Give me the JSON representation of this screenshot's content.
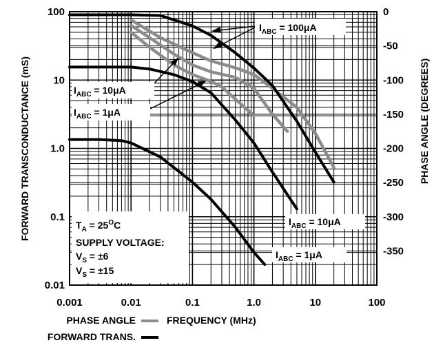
{
  "chart_data": {
    "type": "line",
    "x_scale": "log",
    "y_left_scale": "log",
    "y_right_scale": "linear",
    "xlim": [
      0.001,
      100
    ],
    "ylim_left": [
      0.01,
      100
    ],
    "ylim_right": [
      -400,
      0
    ],
    "grid": true,
    "legend_placement": "bottom-left",
    "xlabel": "FREQUENCY (MHz)",
    "ylabel_left": "FORWARD TRANSCONDUCTANCE (mS)",
    "ylabel_right": "PHASE ANGLE (DEGREES)",
    "x_tick_labels": [
      "0.001",
      "0.01",
      "0.1",
      "1.0",
      "10",
      "100"
    ],
    "y_left_tick_labels": [
      "0.01",
      "0.1",
      "1.0",
      "10",
      "100"
    ],
    "y_right_tick_labels": [
      "0",
      "-50",
      "-100",
      "-150",
      "-200",
      "-250",
      "-300",
      "-350"
    ],
    "legend": [
      {
        "label": "PHASE ANGLE",
        "color": "#8c8c8c"
      },
      {
        "label": "FORWARD TRANS.",
        "color": "#000000"
      }
    ],
    "annotations": {
      "iabc_100_top": {
        "main": "I",
        "sub": "ABC",
        "rest": " = 100μA"
      },
      "iabc_10_left": {
        "main": "I",
        "sub": "ABC",
        "rest": " = 10μA"
      },
      "iabc_1_left": {
        "main": "I",
        "sub": "ABC",
        "rest": " = 1μA"
      },
      "iabc_10_right": {
        "main": "I",
        "sub": "ABC",
        "rest": " = 10μA"
      },
      "iabc_1_right": {
        "main": "I",
        "sub": "ABC",
        "rest": " = 1μA"
      },
      "conditions": {
        "ta_main": "T",
        "ta_sub": "A",
        "ta_rest": " = 25",
        "ta_sup": "O",
        "ta_unit": "C",
        "supply": "SUPPLY VOLTAGE:",
        "vs1_main": "V",
        "vs1_sub": "S",
        "vs1_rest": " = ±6",
        "vs2_main": "V",
        "vs2_sub": "S",
        "vs2_rest": " = ±15"
      }
    },
    "series": [
      {
        "kind": "forward_trans",
        "axis": "left",
        "color": "#000000",
        "iabc": "100μA",
        "x": [
          0.001,
          0.01,
          0.03,
          0.1,
          0.2,
          0.5,
          1,
          2,
          5,
          10,
          20
        ],
        "y": [
          90,
          90,
          88,
          62,
          45,
          25,
          15,
          8.3,
          2.5,
          0.88,
          0.32
        ]
      },
      {
        "kind": "forward_trans",
        "axis": "left",
        "color": "#000000",
        "iabc": "10μA",
        "x": [
          0.001,
          0.01,
          0.02,
          0.05,
          0.1,
          0.2,
          0.5,
          1,
          2,
          5
        ],
        "y": [
          15.5,
          15.5,
          14.5,
          12,
          9.5,
          6.5,
          2.6,
          1.2,
          0.45,
          0.13
        ]
      },
      {
        "kind": "forward_trans",
        "axis": "left",
        "color": "#000000",
        "iabc": "1μA",
        "x": [
          0.001,
          0.003,
          0.007,
          0.01,
          0.03,
          0.1,
          0.2,
          0.5,
          1,
          1.5
        ],
        "y": [
          1.35,
          1.35,
          1.3,
          1.2,
          0.75,
          0.32,
          0.18,
          0.07,
          0.03,
          0.02
        ]
      },
      {
        "kind": "phase_angle",
        "axis": "right",
        "color": "#8c8c8c",
        "iabc": "100μA",
        "x": [
          0.01,
          0.03,
          0.1,
          0.2,
          0.5,
          1,
          2,
          5,
          10,
          20
        ],
        "y": [
          -12,
          -38,
          -60,
          -72,
          -82,
          -92,
          -112,
          -140,
          -178,
          -228
        ]
      },
      {
        "kind": "phase_angle",
        "axis": "right",
        "color": "#8c8c8c",
        "iabc": "10μA",
        "x": [
          0.01,
          0.02,
          0.05,
          0.1,
          0.2,
          0.5,
          1,
          2,
          3.5
        ],
        "y": [
          -20,
          -38,
          -62,
          -78,
          -88,
          -96,
          -112,
          -150,
          -175
        ]
      },
      {
        "kind": "phase_angle",
        "axis": "right",
        "color": "#8c8c8c",
        "iabc": "1μA",
        "x": [
          0.01,
          0.02,
          0.05,
          0.1,
          0.2,
          0.3,
          0.5,
          1
        ],
        "y": [
          -30,
          -52,
          -78,
          -92,
          -102,
          -110,
          -128,
          -152
        ]
      }
    ]
  }
}
